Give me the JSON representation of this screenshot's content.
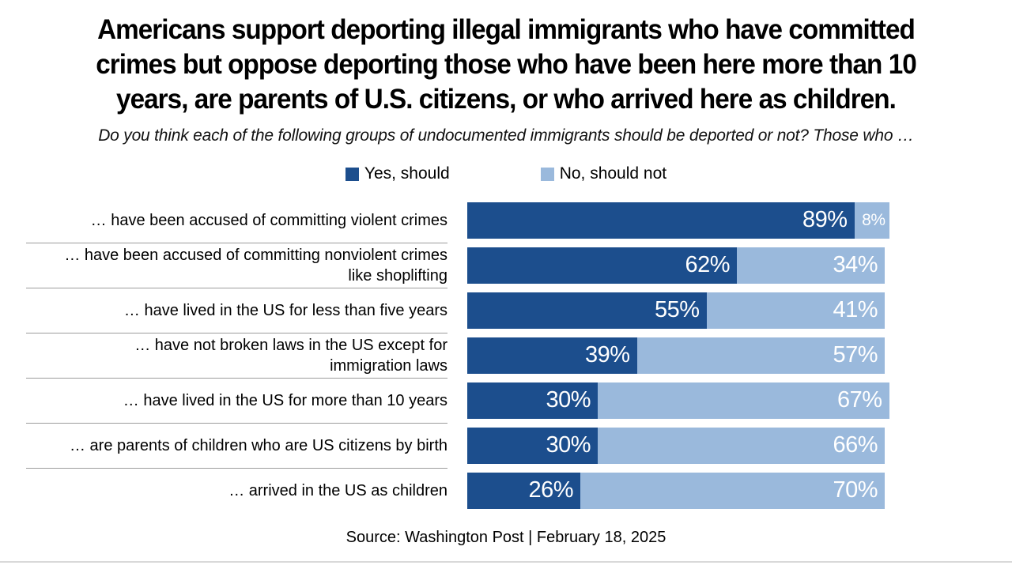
{
  "page": {
    "title_lines": [
      "Americans support deporting illegal immigrants who have committed",
      "crimes but oppose deporting those who have been here more than 10",
      "years, are parents of U.S. citizens, or who arrived here as children."
    ],
    "subtitle": "Do you think each of the following groups of undocumented immigrants should be deported or not? Those who …",
    "source": "Source: Washington Post | February 18, 2025"
  },
  "colors": {
    "yes_bar": "#1c4e8d",
    "no_bar": "#9ab9dc",
    "divider": "#9c9c9c",
    "footer_rule": "#d9d9d9",
    "value_text": "#ffffff"
  },
  "chart_data": {
    "type": "bar",
    "orientation": "horizontal",
    "stacked": true,
    "legend_position": "top",
    "xlim": [
      0,
      100
    ],
    "value_suffix": "%",
    "categories": [
      "… have been accused of committing violent crimes",
      "… have been accused of committing nonviolent crimes like shoplifting",
      "… have lived in the US for less than five years",
      "… have not broken laws in the US except for immigration laws",
      "… have lived in the US for more than 10 years",
      "… are parents of children who are US citizens by birth",
      "… arrived in the US as children"
    ],
    "category_display_lines": [
      [
        "… have been accused of committing violent crimes"
      ],
      [
        "… have been accused of committing nonviolent crimes",
        "like shoplifting"
      ],
      [
        "… have lived in the US for less than five years"
      ],
      [
        "… have not broken laws in the US except for",
        "immigration laws"
      ],
      [
        "… have lived in the US for more than 10 years"
      ],
      [
        "… are parents of children who are US citizens by birth"
      ],
      [
        "… arrived in the US as children"
      ]
    ],
    "series": [
      {
        "name": "Yes, should",
        "color": "#1c4e8d",
        "values": [
          89,
          62,
          55,
          39,
          30,
          30,
          26
        ]
      },
      {
        "name": "No, should not",
        "color": "#9ab9dc",
        "values": [
          8,
          34,
          41,
          57,
          67,
          66,
          70
        ]
      }
    ]
  }
}
